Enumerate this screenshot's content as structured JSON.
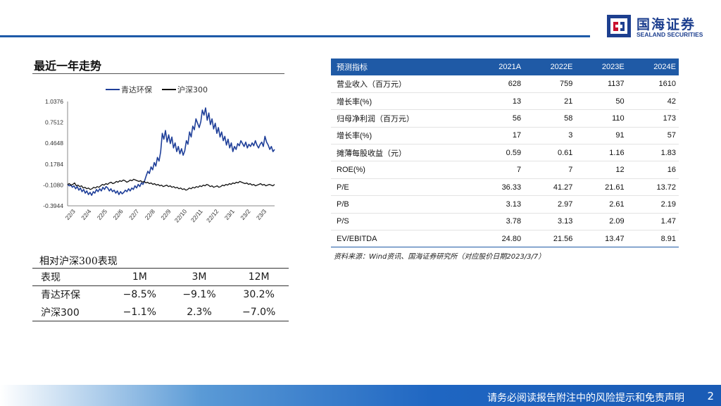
{
  "header": {
    "logo_cn": "国海证券",
    "logo_en": "SEALAND SECURITIES"
  },
  "trend": {
    "title": "最近一年走势"
  },
  "chart_data": {
    "type": "line",
    "legend": [
      "青达环保",
      "沪深300"
    ],
    "legend_placement": "top",
    "y_ticks": [
      "1.0376",
      "0.7512",
      "0.4648",
      "0.1784",
      "-0.1080",
      "-0.3944"
    ],
    "ylim": [
      -0.3944,
      1.0376
    ],
    "x_ticks": [
      "22/3",
      "22/4",
      "22/5",
      "22/6",
      "22/7",
      "22/8",
      "22/9",
      "22/10",
      "22/11",
      "22/12",
      "23/1",
      "23/2",
      "23/3"
    ],
    "colors": {
      "青达环保": "#1f3f99",
      "沪深300": "#111111"
    },
    "series": [
      {
        "name": "青达环保",
        "values": [
          -0.1,
          -0.12,
          -0.11,
          -0.14,
          -0.12,
          -0.16,
          -0.13,
          -0.18,
          -0.15,
          -0.2,
          -0.17,
          -0.22,
          -0.19,
          -0.24,
          -0.21,
          -0.25,
          -0.2,
          -0.22,
          -0.17,
          -0.2,
          -0.16,
          -0.19,
          -0.14,
          -0.17,
          -0.13,
          -0.15,
          -0.19,
          -0.16,
          -0.2,
          -0.18,
          -0.22,
          -0.19,
          -0.24,
          -0.2,
          -0.23,
          -0.21,
          -0.18,
          -0.2,
          -0.16,
          -0.19,
          -0.15,
          -0.17,
          -0.12,
          -0.15,
          -0.1,
          -0.13,
          -0.08,
          -0.1,
          -0.05,
          0.02,
          0.08,
          0.05,
          0.14,
          0.1,
          0.2,
          0.15,
          0.27,
          0.22,
          0.35,
          0.6,
          0.52,
          0.64,
          0.48,
          0.58,
          0.46,
          0.55,
          0.4,
          0.47,
          0.35,
          0.42,
          0.32,
          0.39,
          0.3,
          0.36,
          0.5,
          0.45,
          0.62,
          0.55,
          0.7,
          0.65,
          0.8,
          0.74,
          0.68,
          0.76,
          0.92,
          0.85,
          0.95,
          0.78,
          0.88,
          0.72,
          0.8,
          0.66,
          0.74,
          0.6,
          0.68,
          0.55,
          0.62,
          0.5,
          0.56,
          0.44,
          0.52,
          0.4,
          0.47,
          0.35,
          0.42,
          0.38,
          0.46,
          0.43,
          0.5,
          0.46,
          0.42,
          0.48,
          0.4,
          0.45,
          0.42,
          0.47,
          0.43,
          0.5,
          0.44,
          0.4,
          0.45,
          0.48,
          0.42,
          0.56,
          0.48,
          0.44,
          0.38,
          0.42,
          0.35,
          0.38
        ]
      },
      {
        "name": "沪深300",
        "values": [
          -0.1,
          -0.09,
          -0.11,
          -0.1,
          -0.08,
          -0.12,
          -0.11,
          -0.13,
          -0.12,
          -0.15,
          -0.14,
          -0.16,
          -0.15,
          -0.17,
          -0.16,
          -0.14,
          -0.15,
          -0.13,
          -0.14,
          -0.12,
          -0.1,
          -0.11,
          -0.09,
          -0.1,
          -0.08,
          -0.07,
          -0.09,
          -0.08,
          -0.06,
          -0.07,
          -0.05,
          -0.06,
          -0.04,
          -0.05,
          -0.07,
          -0.06,
          -0.04,
          -0.05,
          -0.03,
          -0.04,
          -0.05,
          -0.06,
          -0.05,
          -0.07,
          -0.06,
          -0.08,
          -0.07,
          -0.09,
          -0.08,
          -0.1,
          -0.09,
          -0.11,
          -0.1,
          -0.12,
          -0.11,
          -0.13,
          -0.12,
          -0.11,
          -0.13,
          -0.12,
          -0.14,
          -0.13,
          -0.15,
          -0.14,
          -0.16,
          -0.15,
          -0.17,
          -0.16,
          -0.18,
          -0.17,
          -0.15,
          -0.16,
          -0.14,
          -0.15,
          -0.13,
          -0.14,
          -0.12,
          -0.13,
          -0.11,
          -0.12,
          -0.1,
          -0.11,
          -0.13,
          -0.12,
          -0.14,
          -0.13,
          -0.12,
          -0.14,
          -0.13,
          -0.11,
          -0.12,
          -0.1,
          -0.11,
          -0.09,
          -0.1,
          -0.08,
          -0.09,
          -0.07,
          -0.08,
          -0.06,
          -0.07,
          -0.08,
          -0.09,
          -0.08,
          -0.1,
          -0.09,
          -0.11,
          -0.1,
          -0.12,
          -0.11,
          -0.1,
          -0.09,
          -0.11,
          -0.1,
          -0.12,
          -0.11,
          -0.1,
          -0.11,
          -0.12,
          -0.1
        ]
      }
    ]
  },
  "relative": {
    "title": "相对沪深300表现",
    "headers": [
      "表现",
      "1M",
      "3M",
      "12M"
    ],
    "rows": [
      [
        "青达环保",
        "−8.5%",
        "−9.1%",
        "30.2%"
      ],
      [
        "沪深300",
        "−1.1%",
        "2.3%",
        "−7.0%"
      ]
    ]
  },
  "forecast": {
    "headers": [
      "预测指标",
      "2021A",
      "2022E",
      "2023E",
      "2024E"
    ],
    "rows": [
      [
        "营业收入（百万元）",
        "628",
        "759",
        "1137",
        "1610"
      ],
      [
        "增长率(%)",
        "13",
        "21",
        "50",
        "42"
      ],
      [
        "归母净利润（百万元）",
        "56",
        "58",
        "110",
        "173"
      ],
      [
        "增长率(%)",
        "17",
        "3",
        "91",
        "57"
      ],
      [
        "摊薄每股收益（元）",
        "0.59",
        "0.61",
        "1.16",
        "1.83"
      ],
      [
        "ROE(%)",
        "7",
        "7",
        "12",
        "16"
      ],
      [
        "P/E",
        "36.33",
        "41.27",
        "21.61",
        "13.72"
      ],
      [
        "P/B",
        "3.13",
        "2.97",
        "2.61",
        "2.19"
      ],
      [
        "P/S",
        "3.78",
        "3.13",
        "2.09",
        "1.47"
      ],
      [
        "EV/EBITDA",
        "24.80",
        "21.56",
        "13.47",
        "8.91"
      ]
    ],
    "source": "资料来源：Wind资讯、国海证券研究所（对应股价日期2023/3/7）"
  },
  "footer": {
    "disclaimer": "请务必阅读报告附注中的风险提示和免责声明",
    "page": "2"
  }
}
